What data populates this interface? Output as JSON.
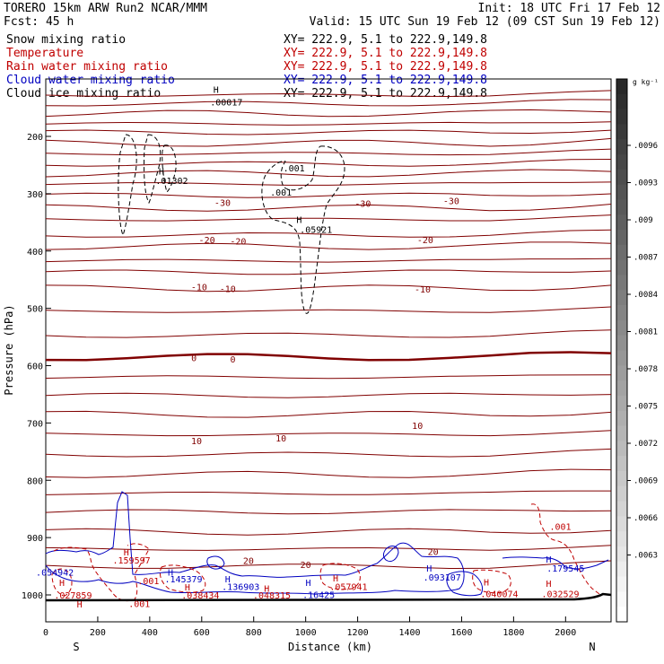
{
  "header": {
    "model": "TORERO  15km ARW   Run2    NCAR/MMM",
    "init": "Init: 18 UTC Fri 17 Feb 12",
    "fcst": "Fcst:   45 h",
    "valid": "Valid: 15 UTC Sun 19 Feb 12 (09 CST Sun 19 Feb 12)"
  },
  "fields": [
    {
      "name": "Snow mixing ratio",
      "xy": "XY= 222.9,  5.1 to 222.9,149.8",
      "color": "#000000"
    },
    {
      "name": "Temperature",
      "xy": "XY= 222.9,  5.1 to 222.9,149.8",
      "color": "#c00000"
    },
    {
      "name": "Rain water mixing ratio",
      "xy": "XY= 222.9,  5.1 to 222.9,149.8",
      "color": "#c00000"
    },
    {
      "name": "Cloud water mixing ratio",
      "xy": "XY= 222.9,  5.1 to 222.9,149.8",
      "color": "#0000c0"
    },
    {
      "name": "Cloud ice mixing ratio",
      "xy": "XY= 222.9,  5.1 to 222.9,149.8",
      "color": "#000000"
    }
  ],
  "chart_data": {
    "type": "cross-section contour",
    "xlabel": "Distance (km)",
    "ylabel": "Pressure (hPa)",
    "xlim": [
      0,
      2175
    ],
    "ylim": [
      1050,
      110
    ],
    "xticks": [
      0,
      200,
      400,
      600,
      800,
      1000,
      1200,
      1400,
      1600,
      1800,
      2000
    ],
    "yticks": [
      200,
      300,
      400,
      500,
      600,
      700,
      800,
      900,
      1000
    ],
    "end_left": "S",
    "end_right": "N",
    "colorbar": {
      "unit": "g kg⁻¹",
      "labels": [
        ".0096",
        ".0093",
        ".009",
        ".0087",
        ".0084",
        ".0081",
        ".0078",
        ".0075",
        ".0072",
        ".0069",
        ".0066",
        ".0063"
      ]
    },
    "temperature_contours": {
      "color": "#800000",
      "levels_hPa": [
        128,
        143,
        160,
        178,
        193,
        212,
        230,
        248,
        265,
        283,
        303,
        325,
        345,
        372,
        392,
        417,
        437,
        465,
        505,
        547,
        585,
        620,
        652,
        685,
        720,
        755,
        790,
        823,
        855,
        890,
        920,
        950
      ],
      "labels": [
        {
          "text": "-30",
          "x": 680,
          "p": 315
        },
        {
          "text": "-30",
          "x": 1220,
          "p": 317
        },
        {
          "text": "-30",
          "x": 1560,
          "p": 312
        },
        {
          "text": "-20",
          "x": 620,
          "p": 380
        },
        {
          "text": "-20",
          "x": 740,
          "p": 382
        },
        {
          "text": "-20",
          "x": 1460,
          "p": 380
        },
        {
          "text": "-10",
          "x": 590,
          "p": 462
        },
        {
          "text": "-10",
          "x": 700,
          "p": 465
        },
        {
          "text": "-10",
          "x": 1450,
          "p": 466
        },
        {
          "text": "0",
          "x": 570,
          "p": 586
        },
        {
          "text": "0",
          "x": 720,
          "p": 588
        },
        {
          "text": "10",
          "x": 580,
          "p": 731
        },
        {
          "text": "10",
          "x": 905,
          "p": 726
        },
        {
          "text": "10",
          "x": 1430,
          "p": 704
        },
        {
          "text": "20",
          "x": 780,
          "p": 940
        },
        {
          "text": "20",
          "x": 1000,
          "p": 947
        },
        {
          "text": "20",
          "x": 1490,
          "p": 924
        }
      ]
    },
    "annotations": [
      {
        "text": "H",
        "x": 655,
        "p": 118,
        "color": "#000000"
      },
      {
        "text": ".00017",
        "x": 695,
        "p": 140,
        "color": "#000000"
      },
      {
        "text": "H",
        "x": 445,
        "p": 260,
        "color": "#000000"
      },
      {
        "text": ".01302",
        "x": 485,
        "p": 277,
        "color": "#000000"
      },
      {
        "text": ".001",
        "x": 955,
        "p": 255,
        "color": "#000000"
      },
      {
        "text": ".001",
        "x": 905,
        "p": 297,
        "color": "#000000"
      },
      {
        "text": "H",
        "x": 975,
        "p": 345,
        "color": "#000000"
      },
      {
        "text": ".05921",
        "x": 1040,
        "p": 362,
        "color": "#000000"
      },
      {
        "text": "H",
        "x": 310,
        "p": 925,
        "color": "#c00000"
      },
      {
        "text": ".159597",
        "x": 330,
        "p": 939,
        "color": "#c00000"
      },
      {
        "text": ".001",
        "x": 395,
        "p": 975,
        "color": "#c00000"
      },
      {
        "text": "H",
        "x": 62,
        "p": 978,
        "color": "#c00000"
      },
      {
        "text": ".027859",
        "x": 105,
        "p": 1000,
        "color": "#c00000"
      },
      {
        "text": "H",
        "x": 130,
        "p": 1016,
        "color": "#c00000"
      },
      {
        "text": ".001",
        "x": 360,
        "p": 1015,
        "color": "#c00000"
      },
      {
        "text": ".054942",
        "x": 35,
        "p": 960,
        "color": "#0000c0"
      },
      {
        "text": "H",
        "x": 480,
        "p": 960,
        "color": "#0000c0"
      },
      {
        "text": ".145379",
        "x": 530,
        "p": 972,
        "color": "#0000c0"
      },
      {
        "text": "H",
        "x": 700,
        "p": 972,
        "color": "#0000c0"
      },
      {
        "text": ".136903",
        "x": 750,
        "p": 985,
        "color": "#0000c0"
      },
      {
        "text": "H",
        "x": 545,
        "p": 986,
        "color": "#c00000"
      },
      {
        "text": ".038434",
        "x": 595,
        "p": 1000,
        "color": "#c00000"
      },
      {
        "text": "H",
        "x": 850,
        "p": 988,
        "color": "#c00000"
      },
      {
        "text": ".048315",
        "x": 870,
        "p": 1000,
        "color": "#c00000"
      },
      {
        "text": "H",
        "x": 1010,
        "p": 978,
        "color": "#0000c0"
      },
      {
        "text": ".16425",
        "x": 1050,
        "p": 999,
        "color": "#0000c0"
      },
      {
        "text": "H",
        "x": 1115,
        "p": 970,
        "color": "#c00000"
      },
      {
        "text": ".057941",
        "x": 1165,
        "p": 985,
        "color": "#c00000"
      },
      {
        "text": "H",
        "x": 1475,
        "p": 953,
        "color": "#0000c0"
      },
      {
        "text": ".093107",
        "x": 1525,
        "p": 969,
        "color": "#0000c0"
      },
      {
        "text": "H",
        "x": 1695,
        "p": 977,
        "color": "#c00000"
      },
      {
        "text": ".040074",
        "x": 1745,
        "p": 998,
        "color": "#c00000"
      },
      {
        "text": "H",
        "x": 1935,
        "p": 937,
        "color": "#0000c0"
      },
      {
        "text": ".179545",
        "x": 2000,
        "p": 953,
        "color": "#0000c0"
      },
      {
        "text": "H",
        "x": 1935,
        "p": 980,
        "color": "#c00000"
      },
      {
        "text": ".032529",
        "x": 1980,
        "p": 998,
        "color": "#c00000"
      },
      {
        "text": ".001",
        "x": 1980,
        "p": 880,
        "color": "#c00000"
      }
    ]
  }
}
